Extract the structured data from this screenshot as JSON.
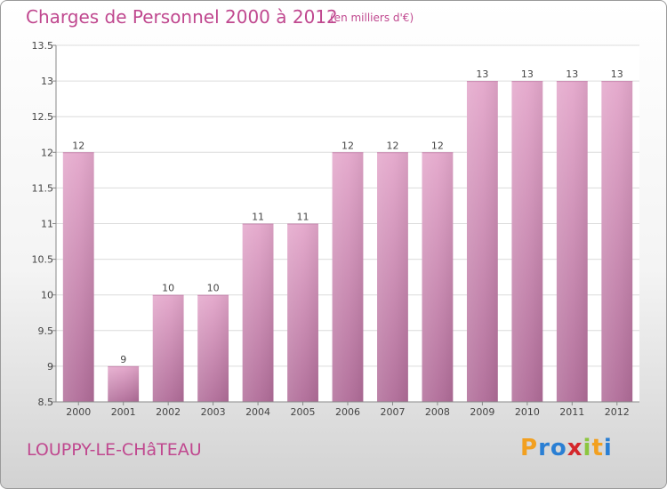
{
  "header": {
    "title": "Charges de Personnel 2000 à 2012",
    "subtitle": "(en milliers d'€)"
  },
  "footer": {
    "location": "LOUPPY-LE-CHâTEAU",
    "logo_letters": [
      "P",
      "r",
      "o",
      "x",
      "i",
      "t",
      "i"
    ],
    "logo_colors": [
      "#f2a020",
      "#2a7fd4",
      "#2a7fd4",
      "#d4262b",
      "#8cc63f",
      "#f2a020",
      "#2a7fd4"
    ]
  },
  "chart_data": {
    "type": "bar",
    "categories": [
      "2000",
      "2001",
      "2002",
      "2003",
      "2004",
      "2005",
      "2006",
      "2007",
      "2008",
      "2009",
      "2010",
      "2011",
      "2012"
    ],
    "values": [
      12,
      9,
      10,
      10,
      11,
      11,
      12,
      12,
      12,
      13,
      13,
      13,
      13
    ],
    "data_labels": [
      "12",
      "9",
      "10",
      "10",
      "11",
      "11",
      "12",
      "12",
      "12",
      "13",
      "13",
      "13",
      "13"
    ],
    "ylim": [
      8.5,
      13.5
    ],
    "yticks": [
      8.5,
      9,
      9.5,
      10,
      10.5,
      11,
      11.5,
      12,
      12.5,
      13,
      13.5
    ],
    "ytick_labels": [
      "8.5",
      "9",
      "9.5",
      "10",
      "10.5",
      "11",
      "11.5",
      "12",
      "12.5",
      "13",
      "13.5"
    ],
    "grid": true,
    "bar_color_top": "#e4a7cb",
    "bar_color_bottom": "#b06c98",
    "xlabel": "",
    "ylabel": ""
  }
}
